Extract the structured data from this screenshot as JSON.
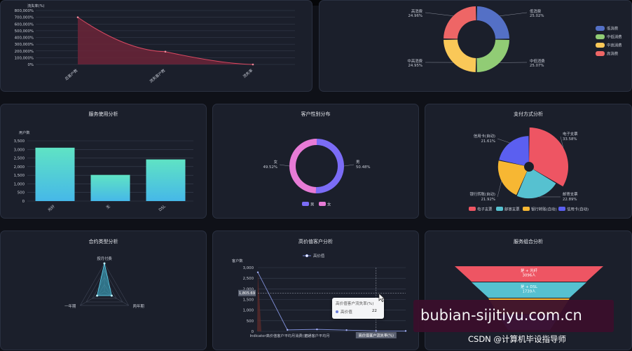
{
  "churn_panel": {
    "ylabel": "流失率(%)",
    "yticks": [
      "800,000%",
      "700,000%",
      "600,000%",
      "500,000%",
      "400,000%",
      "300,000%",
      "200,000%",
      "100,000%",
      "0%"
    ],
    "xcats": [
      "总客户数",
      "流失客户数",
      "流失率"
    ]
  },
  "consumption_panel": {
    "slices": [
      {
        "name": "低消费",
        "pct": "25.02%",
        "color": "#5470c6"
      },
      {
        "name": "中低消费",
        "pct": "25.07%",
        "color": "#91cc75"
      },
      {
        "name": "中高消费",
        "pct": "24.95%",
        "color": "#fac858"
      },
      {
        "name": "高消费",
        "pct": "24.96%",
        "color": "#ee6666"
      }
    ],
    "legend": [
      "低消费",
      "中低消费",
      "中高消费",
      "高消费"
    ]
  },
  "service_panel": {
    "title": "服务使用分析",
    "ylabel": "用户数",
    "yticks": [
      "3,500",
      "3,000",
      "2,500",
      "2,000",
      "1,500",
      "1,000",
      "500",
      "0"
    ]
  },
  "gender_panel": {
    "title": "客户性别分布",
    "male": {
      "name": "男",
      "pct": "50.48%",
      "color": "#7b6cf6"
    },
    "female": {
      "name": "女",
      "pct": "49.52%",
      "color": "#e77bd6"
    },
    "legend": [
      "男",
      "女"
    ]
  },
  "payment_panel": {
    "title": "支付方式分析",
    "slices": [
      {
        "name": "电子支票",
        "pct": "33.58%",
        "color": "#ee5563"
      },
      {
        "name": "邮寄支票",
        "pct": "22.89%",
        "color": "#56c1d0"
      },
      {
        "name": "银行转账(自动)",
        "pct": "21.92%",
        "color": "#f7b733"
      },
      {
        "name": "信用卡(自动)",
        "pct": "21.61%",
        "color": "#5b5ff0"
      }
    ],
    "legend": [
      "电子支票",
      "邮寄支票",
      "银行转账(自动)",
      "信用卡(自动)"
    ]
  },
  "contract_panel": {
    "title": "合约类型分析",
    "axes": [
      "按月付费",
      "两年期",
      "一年期"
    ]
  },
  "highvalue_panel": {
    "title": "高价值客户分析",
    "legend": "高价值",
    "ylabel": "客户数",
    "yticks": [
      "3,000",
      "2,500",
      "2,000",
      "1,500",
      "1,000",
      "500",
      "0"
    ],
    "xcats": [
      "Indicator",
      "高价值客户平均月消费(元)",
      "普通客户平均月"
    ],
    "axis_pointer_value": "1,805.69",
    "axis_pointer_category": "高价值客户流失率(%)",
    "tooltip": {
      "title": "高价值客户流失率(%)",
      "series": "高价值",
      "value": "22"
    }
  },
  "combo_panel": {
    "title": "服务组合分析",
    "layers": [
      {
        "label": "是 + 光纤",
        "count": "3096人",
        "color": "#ee5563"
      },
      {
        "label": "是 + DSL",
        "count": "1739人",
        "color": "#56c1d0"
      }
    ]
  },
  "watermark": "bubian-sijitiyu.com.cn",
  "footer": "CSDN @计算机毕设指导师",
  "chart_data": [
    {
      "type": "line",
      "title": "",
      "categories": [
        "总客户数",
        "流失客户数",
        "流失率"
      ],
      "values": [
        700000,
        190000,
        0
      ],
      "ylabel": "流失率(%)",
      "ylim": [
        0,
        800000
      ],
      "grid": true
    },
    {
      "type": "pie",
      "title": "",
      "categories": [
        "低消费",
        "中低消费",
        "中高消费",
        "高消费"
      ],
      "values": [
        25.02,
        25.07,
        24.95,
        24.96
      ],
      "legend": "right"
    },
    {
      "type": "bar",
      "title": "服务使用分析",
      "categories": [
        "光纤",
        "无",
        "DSL"
      ],
      "values": [
        3100,
        1520,
        2420
      ],
      "ylabel": "用户数",
      "ylim": [
        0,
        3500
      ],
      "grid": true
    },
    {
      "type": "pie",
      "title": "客户性别分布",
      "categories": [
        "男",
        "女"
      ],
      "values": [
        50.48,
        49.52
      ],
      "legend": "bottom"
    },
    {
      "type": "pie",
      "title": "支付方式分析",
      "categories": [
        "电子支票",
        "邮寄支票",
        "银行转账(自动)",
        "信用卡(自动)"
      ],
      "values": [
        33.58,
        22.89,
        21.92,
        21.61
      ],
      "legend": "bottom"
    },
    {
      "type": "radar",
      "title": "合约类型分析",
      "categories": [
        "按月付费",
        "两年期",
        "一年期"
      ],
      "values": [
        1,
        0.3,
        0.3
      ]
    },
    {
      "type": "line",
      "title": "高价值客户分析",
      "categories": [
        "Indicator",
        "高价值客户平均月消费(元)",
        "普通客户平均月",
        "",
        "高价值客户流失率(%)",
        ""
      ],
      "values": [
        2780,
        70,
        95,
        60,
        22,
        20
      ],
      "series_name": "高价值",
      "ylabel": "客户数",
      "ylim": [
        0,
        3000
      ],
      "grid": true
    },
    {
      "type": "funnel",
      "title": "服务组合分析",
      "categories": [
        "是 + 光纤",
        "是 + DSL"
      ],
      "values": [
        3096,
        1739
      ]
    }
  ]
}
